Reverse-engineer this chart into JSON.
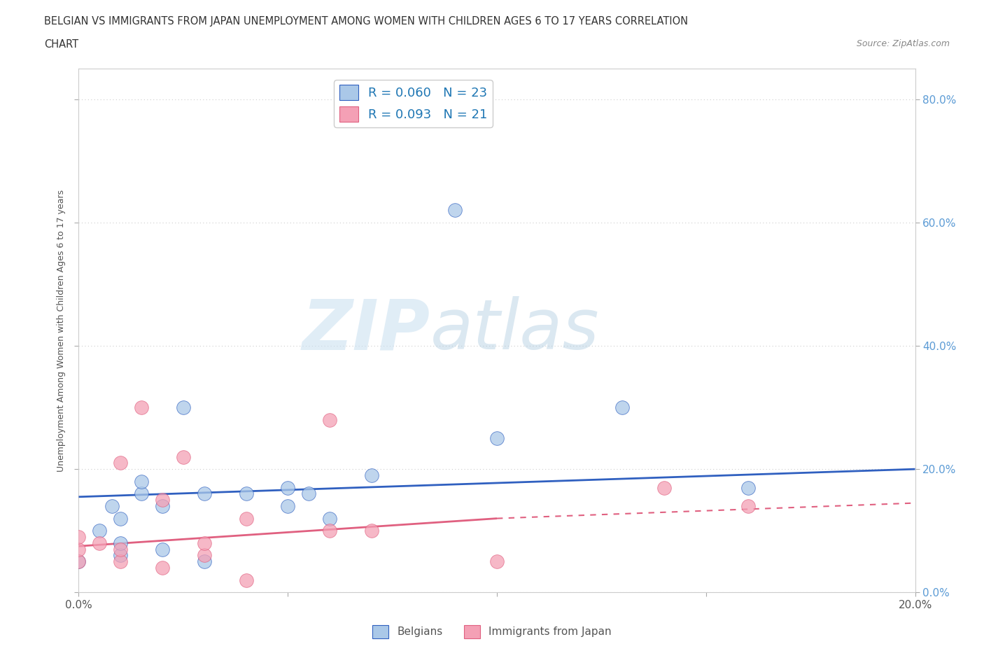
{
  "title_line1": "BELGIAN VS IMMIGRANTS FROM JAPAN UNEMPLOYMENT AMONG WOMEN WITH CHILDREN AGES 6 TO 17 YEARS CORRELATION",
  "title_line2": "CHART",
  "source": "Source: ZipAtlas.com",
  "ylabel": "Unemployment Among Women with Children Ages 6 to 17 years",
  "xlim": [
    0.0,
    0.2
  ],
  "ylim": [
    0.0,
    0.85
  ],
  "xtick_positions": [
    0.0,
    0.05,
    0.1,
    0.15,
    0.2
  ],
  "xtick_labels_show": [
    "0.0%",
    "",
    "",
    "",
    "20.0%"
  ],
  "ytick_values": [
    0.0,
    0.2,
    0.4,
    0.6,
    0.8
  ],
  "ytick_labels": [
    "0.0%",
    "20.0%",
    "40.0%",
    "60.0%",
    "80.0%"
  ],
  "legend_belgian": "R = 0.060   N = 23",
  "legend_japan": "R = 0.093   N = 21",
  "belgian_color": "#aac8e8",
  "japan_color": "#f4a0b5",
  "belgian_line_color": "#3060c0",
  "japan_line_color": "#e06080",
  "watermark_zip": "ZIP",
  "watermark_atlas": "atlas",
  "background_color": "#ffffff",
  "grid_color": "#cccccc",
  "belgian_scatter_x": [
    0.0,
    0.005,
    0.008,
    0.01,
    0.01,
    0.01,
    0.015,
    0.015,
    0.02,
    0.02,
    0.025,
    0.03,
    0.03,
    0.04,
    0.05,
    0.05,
    0.055,
    0.06,
    0.07,
    0.09,
    0.1,
    0.13,
    0.16
  ],
  "belgian_scatter_y": [
    0.05,
    0.1,
    0.14,
    0.06,
    0.08,
    0.12,
    0.16,
    0.18,
    0.07,
    0.14,
    0.3,
    0.05,
    0.16,
    0.16,
    0.14,
    0.17,
    0.16,
    0.12,
    0.19,
    0.62,
    0.25,
    0.3,
    0.17
  ],
  "japan_scatter_x": [
    0.0,
    0.0,
    0.0,
    0.005,
    0.01,
    0.01,
    0.01,
    0.015,
    0.02,
    0.02,
    0.025,
    0.03,
    0.03,
    0.04,
    0.04,
    0.06,
    0.06,
    0.07,
    0.1,
    0.14,
    0.16
  ],
  "japan_scatter_y": [
    0.05,
    0.07,
    0.09,
    0.08,
    0.05,
    0.07,
    0.21,
    0.3,
    0.04,
    0.15,
    0.22,
    0.06,
    0.08,
    0.02,
    0.12,
    0.1,
    0.28,
    0.1,
    0.05,
    0.17,
    0.14
  ],
  "belgian_line_x": [
    0.0,
    0.2
  ],
  "belgian_line_y": [
    0.155,
    0.2
  ],
  "japan_line_x": [
    0.0,
    0.1
  ],
  "japan_line_y": [
    0.075,
    0.12
  ]
}
